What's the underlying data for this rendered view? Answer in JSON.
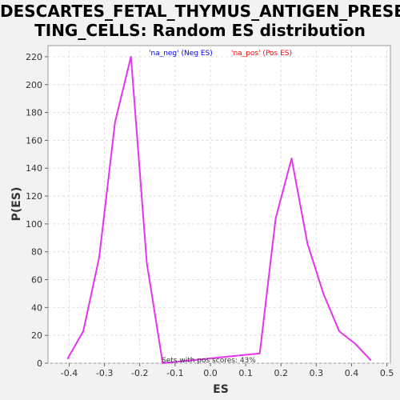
{
  "chart_data": {
    "type": "line",
    "title": "DESCARTES_FETAL_THYMUS_ANTIGEN_PRESEN\nTING_CELLS: Random ES distribution",
    "xlabel": "ES",
    "ylabel": "P(ES)",
    "xlim": [
      -0.46,
      0.51
    ],
    "ylim": [
      0,
      228
    ],
    "xticks": [
      -0.4,
      -0.3,
      -0.2,
      -0.1,
      0.0,
      0.1,
      0.2,
      0.3,
      0.4,
      0.5
    ],
    "xtick_labels": [
      "-0.4",
      "-0.3",
      "-0.2",
      "-0.1",
      "0.0",
      "0.1",
      "0.2",
      "0.3",
      "0.4",
      "0.5"
    ],
    "yticks": [
      0,
      20,
      40,
      60,
      80,
      100,
      120,
      140,
      160,
      180,
      200,
      220
    ],
    "ytick_labels": [
      "0",
      "20",
      "40",
      "60",
      "80",
      "100",
      "120",
      "140",
      "160",
      "180",
      "200",
      "220"
    ],
    "grid": true,
    "legend": [
      {
        "label": "'na_neg' (Neg ES)",
        "color": "#0000ff"
      },
      {
        "label": "'na_pos' (Pos ES)",
        "color": "#ff0000"
      }
    ],
    "annotation": "Sets with pos scores: 43%",
    "series": [
      {
        "color": "#e633f0",
        "x": [
          -0.405,
          -0.36,
          -0.315,
          -0.27,
          -0.225,
          -0.18,
          -0.135,
          0.14,
          0.185,
          0.23,
          0.275,
          0.32,
          0.365,
          0.41,
          0.455
        ],
        "y": [
          3,
          23,
          76,
          173,
          220,
          72,
          0,
          7,
          104,
          147,
          86,
          50,
          23,
          14,
          2
        ]
      }
    ]
  }
}
